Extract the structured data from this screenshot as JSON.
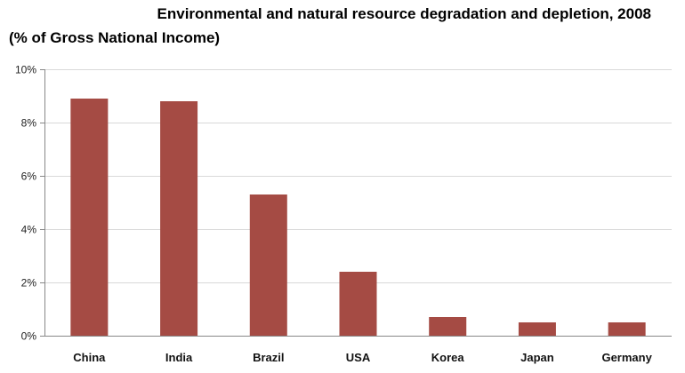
{
  "chart_data": {
    "type": "bar",
    "title": "Environmental and natural resource degradation and depletion, 2008",
    "subtitle": "(% of Gross National Income)",
    "xlabel": "",
    "ylabel": "",
    "categories": [
      "China",
      "India",
      "Brazil",
      "USA",
      "Korea",
      "Japan",
      "Germany"
    ],
    "values": [
      8.9,
      8.8,
      5.3,
      2.4,
      0.7,
      0.5,
      0.5
    ],
    "ylim": [
      0,
      10
    ],
    "yticks": [
      0,
      2,
      4,
      6,
      8,
      10
    ],
    "ytick_labels": [
      "0%",
      "2%",
      "4%",
      "6%",
      "8%",
      "10%"
    ],
    "grid": true,
    "legend": "none",
    "colors": {
      "bar": "#A54B44",
      "grid": "#D9D9D9",
      "axis": "#888888"
    }
  }
}
